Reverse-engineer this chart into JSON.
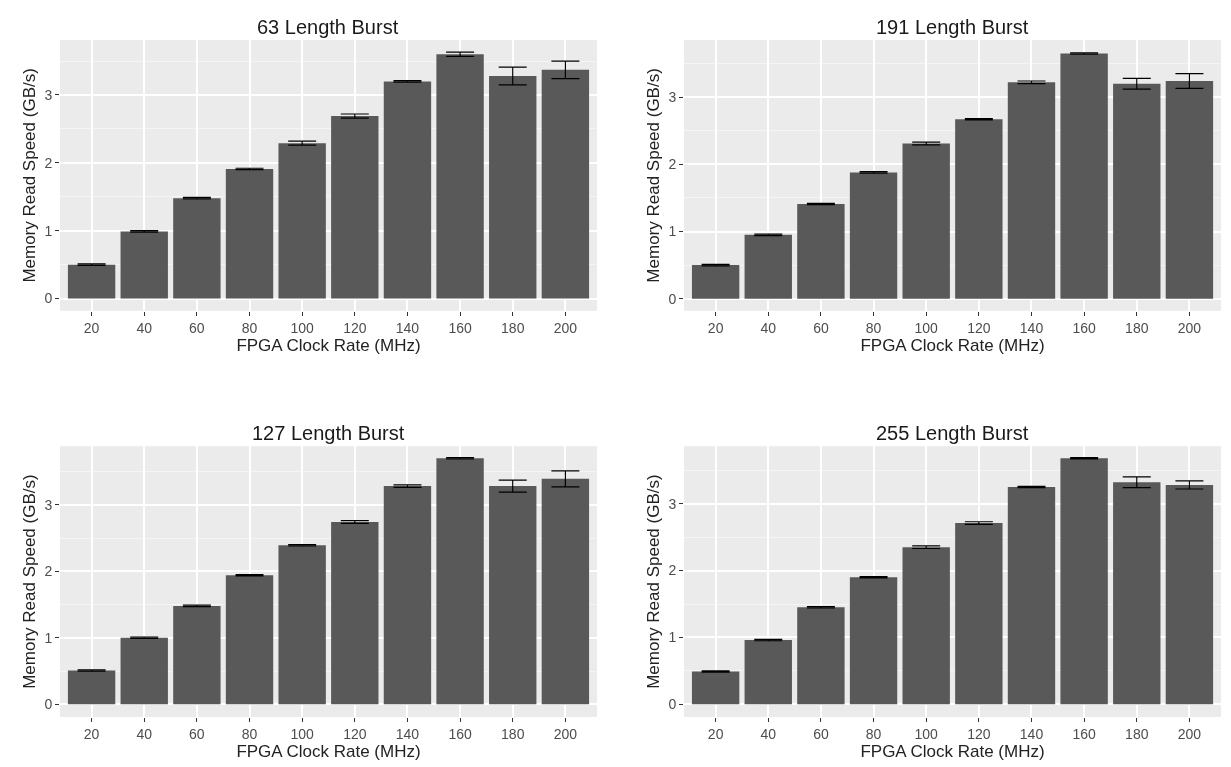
{
  "chart_data": [
    {
      "type": "bar",
      "title": "63 Length Burst",
      "xlabel": "FPGA Clock Rate (MHz)",
      "ylabel": "Memory Read Speed (GB/s)",
      "categories": [
        "20",
        "40",
        "60",
        "80",
        "100",
        "120",
        "140",
        "160",
        "180",
        "200"
      ],
      "values": [
        0.5,
        0.99,
        1.48,
        1.91,
        2.29,
        2.69,
        3.2,
        3.6,
        3.28,
        3.37
      ],
      "errors": [
        0.01,
        0.01,
        0.01,
        0.01,
        0.03,
        0.03,
        0.01,
        0.03,
        0.13,
        0.13
      ],
      "color": "#595959",
      "ylim": [
        -0.18,
        3.81
      ],
      "yticks": [
        0,
        1,
        2,
        3
      ],
      "grid": true
    },
    {
      "type": "bar",
      "title": "191 Length Burst",
      "xlabel": "FPGA Clock Rate (MHz)",
      "ylabel": "Memory Read Speed (GB/s)",
      "categories": [
        "20",
        "40",
        "60",
        "80",
        "100",
        "120",
        "140",
        "160",
        "180",
        "200"
      ],
      "values": [
        0.5,
        0.95,
        1.41,
        1.88,
        2.31,
        2.67,
        3.22,
        3.65,
        3.2,
        3.24
      ],
      "errors": [
        0.01,
        0.01,
        0.01,
        0.01,
        0.02,
        0.01,
        0.02,
        0.01,
        0.08,
        0.11
      ],
      "color": "#595959",
      "ylim": [
        -0.18,
        3.85
      ],
      "yticks": [
        0,
        1,
        2,
        3
      ],
      "grid": true
    },
    {
      "type": "bar",
      "title": "127 Length Burst",
      "xlabel": "FPGA Clock Rate (MHz)",
      "ylabel": "Memory Read Speed (GB/s)",
      "categories": [
        "20",
        "40",
        "60",
        "80",
        "100",
        "120",
        "140",
        "160",
        "180",
        "200"
      ],
      "values": [
        0.51,
        1.0,
        1.48,
        1.94,
        2.39,
        2.74,
        3.28,
        3.7,
        3.28,
        3.39
      ],
      "errors": [
        0.01,
        0.01,
        0.01,
        0.01,
        0.01,
        0.02,
        0.02,
        0.01,
        0.09,
        0.12
      ],
      "color": "#595959",
      "ylim": [
        -0.19,
        3.88
      ],
      "yticks": [
        0,
        1,
        2,
        3
      ],
      "grid": true
    },
    {
      "type": "bar",
      "title": "255 Length Burst",
      "xlabel": "FPGA Clock Rate (MHz)",
      "ylabel": "Memory Read Speed (GB/s)",
      "categories": [
        "20",
        "40",
        "60",
        "80",
        "100",
        "120",
        "140",
        "160",
        "180",
        "200"
      ],
      "values": [
        0.49,
        0.96,
        1.45,
        1.9,
        2.35,
        2.71,
        3.25,
        3.68,
        3.32,
        3.28
      ],
      "errors": [
        0.01,
        0.01,
        0.01,
        0.01,
        0.02,
        0.02,
        0.01,
        0.01,
        0.08,
        0.06
      ],
      "color": "#595959",
      "ylim": [
        -0.19,
        3.86
      ],
      "yticks": [
        0,
        1,
        2,
        3
      ],
      "grid": true
    }
  ]
}
